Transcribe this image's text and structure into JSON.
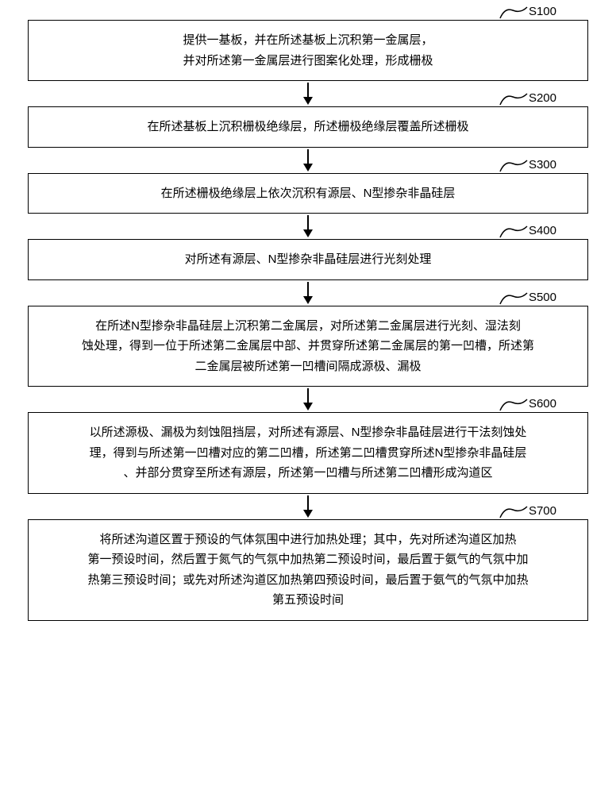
{
  "flowchart": {
    "type": "flowchart",
    "background_color": "#ffffff",
    "border_color": "#000000",
    "text_color": "#000000",
    "font_size": 15,
    "box_border_width": 1.5,
    "arrow_color": "#000000",
    "label_curve_color": "#000000",
    "steps": [
      {
        "label": "S100",
        "lines": [
          "提供一基板，并在所述基板上沉积第一金属层，",
          "并对所述第一金属层进行图案化处理，形成栅极"
        ]
      },
      {
        "label": "S200",
        "lines": [
          "在所述基板上沉积栅极绝缘层，所述栅极绝缘层覆盖所述栅极"
        ]
      },
      {
        "label": "S300",
        "lines": [
          "在所述栅极绝缘层上依次沉积有源层、N型掺杂非晶硅层"
        ]
      },
      {
        "label": "S400",
        "lines": [
          "对所述有源层、N型掺杂非晶硅层进行光刻处理"
        ]
      },
      {
        "label": "S500",
        "lines": [
          "在所述N型掺杂非晶硅层上沉积第二金属层，对所述第二金属层进行光刻、湿法刻",
          "蚀处理，得到一位于所述第二金属层中部、并贯穿所述第二金属层的第一凹槽，所述第",
          "二金属层被所述第一凹槽间隔成源极、漏极"
        ]
      },
      {
        "label": "S600",
        "lines": [
          "以所述源极、漏极为刻蚀阻挡层，对所述有源层、N型掺杂非晶硅层进行干法刻蚀处",
          "理，得到与所述第一凹槽对应的第二凹槽，所述第二凹槽贯穿所述N型掺杂非晶硅层",
          "、并部分贯穿至所述有源层，所述第一凹槽与所述第二凹槽形成沟道区"
        ]
      },
      {
        "label": "S700",
        "lines": [
          "将所述沟道区置于预设的气体氛围中进行加热处理；其中，先对所述沟道区加热",
          "第一预设时间，然后置于氮气的气氛中加热第二预设时间，最后置于氨气的气氛中加",
          "热第三预设时间；或先对所述沟道区加热第四预设时间，最后置于氨气的气氛中加热",
          "第五预设时间"
        ]
      }
    ]
  }
}
